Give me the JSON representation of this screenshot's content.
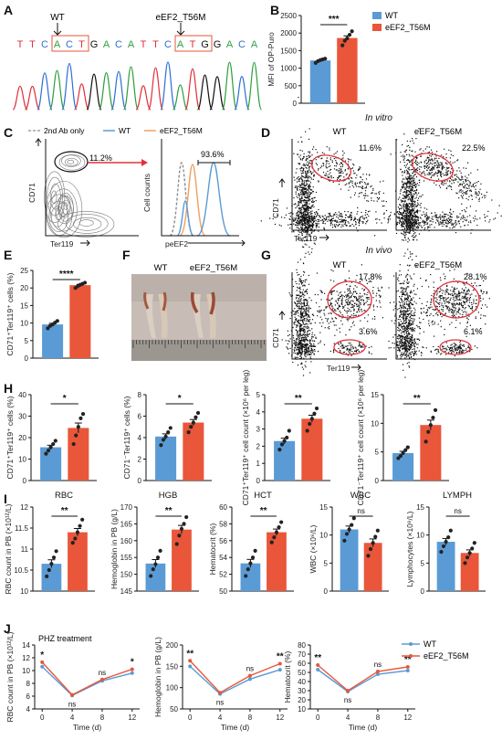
{
  "colors": {
    "wt": "#5b9bd5",
    "mut": "#e9563a",
    "gate": "#e0303a",
    "ctrl": "#8c8c8c",
    "cyto": "#111111"
  },
  "panels": {
    "A": {
      "label": "A",
      "wt": "WT",
      "mut": "eEF2_T56M",
      "seq_wt": [
        "T",
        "T",
        "C",
        "A",
        "C",
        "T",
        "G",
        "A",
        "C",
        "A"
      ],
      "seq_mut": [
        "T",
        "T",
        "C",
        "A",
        "T",
        "G",
        "G",
        "A",
        "C",
        "A"
      ]
    },
    "B": {
      "label": "B",
      "sig": "***",
      "ylabel": "MFI of OP-Puro"
    },
    "C": {
      "label": "C",
      "legend_ctrl": "2nd Ab only",
      "legend_wt": "WT",
      "legend_mut": "eEF2_T56M",
      "gate_pct": "11.2%",
      "hist_pct": "93.6%",
      "xlabel_left": "Ter119",
      "ylabel_left": "CD71",
      "xlabel_right": "peEF2",
      "ylabel_right": "Cell counts"
    },
    "D": {
      "label": "D",
      "title": "In vitro",
      "wt": "WT",
      "mut": "eEF2_T56M",
      "pct_wt": "11.6%",
      "pct_mut": "22.5%",
      "xlabel": "Ter119",
      "ylabel": "CD71"
    },
    "E": {
      "label": "E",
      "sig": "****",
      "ylabel": "CD71⁺Ter119⁺ cells (%)"
    },
    "F": {
      "label": "F",
      "wt": "WT",
      "mut": "eEF2_T56M"
    },
    "G": {
      "label": "G",
      "title": "In vivo",
      "wt": "WT",
      "mut": "eEF2_T56M",
      "wt_top": "17.8%",
      "wt_bot": "3.6%",
      "mut_top": "28.1%",
      "mut_bot": "6.1%",
      "xlabel": "Ter119",
      "ylabel": "CD71"
    },
    "H": {
      "label": "H"
    },
    "I": {
      "label": "I"
    },
    "J": {
      "label": "J",
      "title": "PHZ treatment",
      "legend_wt": "WT",
      "legend_mut": "eEF2_T56M"
    }
  },
  "chart_data": [
    {
      "id": "B",
      "type": "bar",
      "categories": [
        "WT",
        "eEF2_T56M"
      ],
      "values": [
        1220,
        1860
      ],
      "ylim": [
        0,
        2500
      ],
      "yticks": [
        0,
        500,
        1000,
        1500,
        2000,
        2500
      ],
      "ylabel": "MFI of OP-Puro",
      "points": [
        [
          1150,
          1200,
          1230,
          1250,
          1270
        ],
        [
          1650,
          1780,
          1850,
          1950,
          2050
        ]
      ],
      "sig": "***"
    },
    {
      "id": "E",
      "type": "bar",
      "categories": [
        "WT",
        "eEF2_T56M"
      ],
      "values": [
        9.6,
        20.8
      ],
      "ylim": [
        0,
        25
      ],
      "yticks": [
        0,
        5,
        10,
        15,
        20,
        25
      ],
      "ylabel": "CD71⁺Ter119⁺ cells (%)",
      "points": [
        [
          8.5,
          9.2,
          9.6,
          10.1,
          10.6
        ],
        [
          20.0,
          20.5,
          20.9,
          21.2,
          21.5
        ]
      ],
      "sig": "****"
    },
    {
      "id": "H1",
      "type": "bar",
      "categories": [
        "WT",
        "eEF2_T56M"
      ],
      "values": [
        15.5,
        24.5
      ],
      "ylim": [
        0,
        40
      ],
      "yticks": [
        0,
        10,
        20,
        30,
        40
      ],
      "ylabel": "CD71⁺Ter119⁺ cells (%)",
      "points": [
        [
          12.5,
          14,
          15.5,
          17,
          18.5
        ],
        [
          17,
          21,
          25,
          29,
          31
        ]
      ],
      "sig": "*"
    },
    {
      "id": "H2",
      "type": "bar",
      "categories": [
        "WT",
        "eEF2_T56M"
      ],
      "values": [
        4.1,
        5.4
      ],
      "ylim": [
        0,
        8
      ],
      "yticks": [
        0,
        2,
        4,
        6,
        8
      ],
      "ylabel": "CD71⁻Ter119⁺ cells (%)",
      "points": [
        [
          3.3,
          3.8,
          4.1,
          4.5,
          4.9
        ],
        [
          4.5,
          5.0,
          5.4,
          5.9,
          6.3
        ]
      ],
      "sig": "*"
    },
    {
      "id": "H3",
      "type": "bar",
      "categories": [
        "WT",
        "eEF2_T56M"
      ],
      "values": [
        2.3,
        3.6
      ],
      "ylim": [
        0,
        5
      ],
      "yticks": [
        0,
        1,
        2,
        3,
        4,
        5
      ],
      "ylabel": "CD71⁺Ter119⁺ cell count (×10⁶ per leg)",
      "points": [
        [
          1.8,
          2.1,
          2.3,
          2.5,
          2.9
        ],
        [
          2.9,
          3.3,
          3.6,
          3.9,
          4.2
        ]
      ],
      "sig": "**"
    },
    {
      "id": "H4",
      "type": "bar",
      "categories": [
        "WT",
        "eEF2_T56M"
      ],
      "values": [
        4.8,
        9.7
      ],
      "ylim": [
        0,
        15
      ],
      "yticks": [
        0,
        5,
        10,
        15
      ],
      "ylabel": "CD71⁻Ter119⁺ cell count (×10⁶ per leg)",
      "points": [
        [
          3.9,
          4.3,
          4.8,
          5.3,
          5.8
        ],
        [
          6.8,
          8.5,
          9.7,
          11.0,
          12.3
        ]
      ],
      "sig": "**"
    },
    {
      "id": "I1",
      "type": "bar",
      "title": "RBC",
      "categories": [
        "WT",
        "eEF2_T56M"
      ],
      "values": [
        10.65,
        11.4
      ],
      "ylim": [
        10.0,
        12.0
      ],
      "yticks": [
        10.0,
        10.5,
        11.0,
        11.5,
        12.0
      ],
      "ylabel": "RBC count in PB (×10¹²/L)",
      "points": [
        [
          10.35,
          10.5,
          10.65,
          10.8,
          10.95
        ],
        [
          11.15,
          11.25,
          11.4,
          11.55,
          11.7
        ]
      ],
      "sig": "**"
    },
    {
      "id": "I2",
      "type": "bar",
      "title": "HGB",
      "categories": [
        "WT",
        "eEF2_T56M"
      ],
      "values": [
        153.2,
        163.3
      ],
      "ylim": [
        145,
        170
      ],
      "yticks": [
        145,
        150,
        155,
        160,
        165,
        170
      ],
      "ylabel": "Hemoglobin in PB (g/L)",
      "points": [
        [
          149.5,
          151.5,
          153,
          155,
          157
        ],
        [
          159,
          161.5,
          163.5,
          165,
          167
        ]
      ],
      "sig": "**"
    },
    {
      "id": "I3",
      "type": "bar",
      "title": "HCT",
      "categories": [
        "WT",
        "eEF2_T56M"
      ],
      "values": [
        53.3,
        57.0
      ],
      "ylim": [
        50,
        60
      ],
      "yticks": [
        50,
        52,
        54,
        56,
        58,
        60
      ],
      "ylabel": "Hematocrit (%)",
      "points": [
        [
          51.8,
          52.6,
          53.3,
          54.0,
          54.8
        ],
        [
          55.8,
          56.4,
          57.0,
          57.6,
          58.2
        ]
      ],
      "sig": "**"
    },
    {
      "id": "I4",
      "type": "bar",
      "title": "WBC",
      "categories": [
        "WT",
        "eEF2_T56M"
      ],
      "values": [
        11.0,
        8.6
      ],
      "ylim": [
        0,
        15
      ],
      "yticks": [
        0,
        5,
        10,
        15
      ],
      "ylabel": "WBC (×10⁹/L)",
      "points": [
        [
          9.0,
          10.2,
          11.0,
          11.8,
          13.0
        ],
        [
          6.3,
          7.5,
          8.6,
          9.7,
          10.8
        ]
      ],
      "sig": "ns"
    },
    {
      "id": "I5",
      "type": "bar",
      "title": "LYMPH",
      "categories": [
        "WT",
        "eEF2_T56M"
      ],
      "values": [
        8.8,
        6.8
      ],
      "ylim": [
        0,
        15
      ],
      "yticks": [
        0,
        5,
        10,
        15
      ],
      "ylabel": "Lymphocytes (×10⁹/L)",
      "points": [
        [
          7.0,
          8.0,
          8.8,
          9.6,
          10.8
        ],
        [
          5.0,
          6.0,
          6.8,
          7.6,
          8.6
        ]
      ],
      "sig": "ns"
    },
    {
      "id": "J1",
      "type": "line",
      "x": [
        0,
        4,
        8,
        12
      ],
      "ylim": [
        4,
        14
      ],
      "yticks": [
        4,
        6,
        8,
        10,
        12,
        14
      ],
      "xlabel": "Time (d)",
      "ylabel": "RBC count in PB (×10¹²/L)",
      "series": [
        {
          "name": "WT",
          "values": [
            10.6,
            6.1,
            8.4,
            9.6
          ]
        },
        {
          "name": "eEF2_T56M",
          "values": [
            11.3,
            6.2,
            8.6,
            10.2
          ]
        }
      ],
      "sig": [
        "*",
        "ns",
        "ns",
        "*"
      ]
    },
    {
      "id": "J2",
      "type": "line",
      "x": [
        0,
        4,
        8,
        12
      ],
      "ylim": [
        50,
        200
      ],
      "yticks": [
        50,
        100,
        150,
        200
      ],
      "xlabel": "Time (d)",
      "ylabel": "Hemoglobin in PB (g/L)",
      "series": [
        {
          "name": "WT",
          "values": [
            150,
            85,
            120,
            142
          ]
        },
        {
          "name": "eEF2_T56M",
          "values": [
            163,
            88,
            128,
            156
          ]
        }
      ],
      "sig": [
        "**",
        "ns",
        "ns",
        "**"
      ]
    },
    {
      "id": "J3",
      "type": "line",
      "x": [
        0,
        4,
        8,
        12
      ],
      "ylim": [
        10,
        80
      ],
      "yticks": [
        10,
        20,
        30,
        40,
        50,
        60,
        70,
        80
      ],
      "xlabel": "Time (d)",
      "ylabel": "Hematocrit (%)",
      "series": [
        {
          "name": "WT",
          "values": [
            53,
            29,
            48,
            52
          ]
        },
        {
          "name": "eEF2_T56M",
          "values": [
            58,
            30,
            51,
            56
          ]
        }
      ],
      "sig": [
        "**",
        "ns",
        "ns",
        "**"
      ]
    }
  ]
}
